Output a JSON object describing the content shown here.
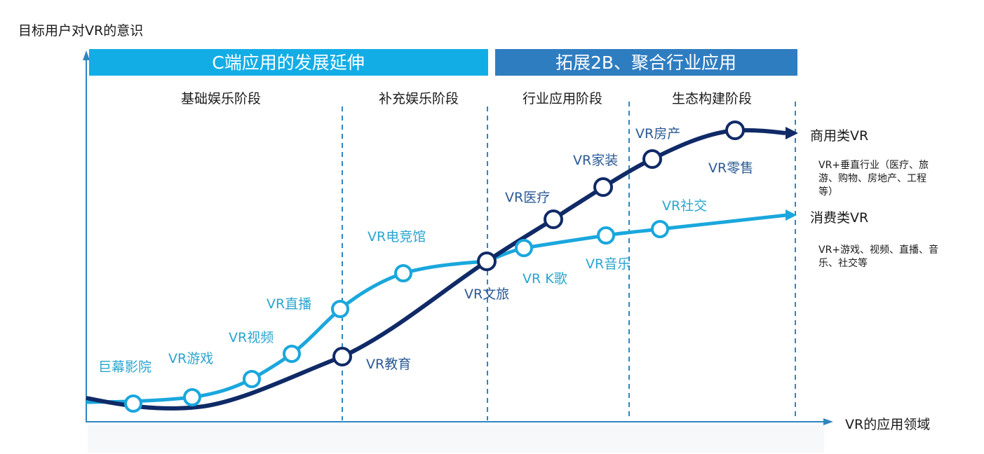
{
  "y_axis_label": "目标用户对VR的意识",
  "x_axis_label": "VR的应用领域",
  "banners": [
    {
      "text": "C端应用的发展延伸",
      "color": "#13ade6"
    },
    {
      "text": "拓展2B、聚合行业应用",
      "color": "#2f7dc1"
    }
  ],
  "stages": [
    "基础娱乐阶段",
    "补充娱乐阶段",
    "行业应用阶段",
    "生态构建阶段"
  ],
  "series": {
    "commercial": {
      "name": "商用类VR",
      "description_lines": [
        "VR+垂直行业（医疗、旅",
        "游、购物、房地产、工程",
        "等）"
      ],
      "color": "#0f2a66",
      "points": [
        "VR教育",
        "VR文旅",
        "VR医疗",
        "VR家装",
        "VR房产",
        "VR零售"
      ]
    },
    "consumer": {
      "name": "消费类VR",
      "description_lines": [
        "VR+游戏、视频、直播、音",
        "乐、社交等"
      ],
      "color": "#1aa7dd",
      "points": [
        "巨幕影院",
        "VR游戏",
        "VR视频",
        "VR直播",
        "VR电竞馆",
        "VR K歌",
        "VR音乐",
        "VR社交"
      ]
    }
  },
  "label_color_dark": "#2a5a96",
  "label_color_light": "#2aa5cf"
}
